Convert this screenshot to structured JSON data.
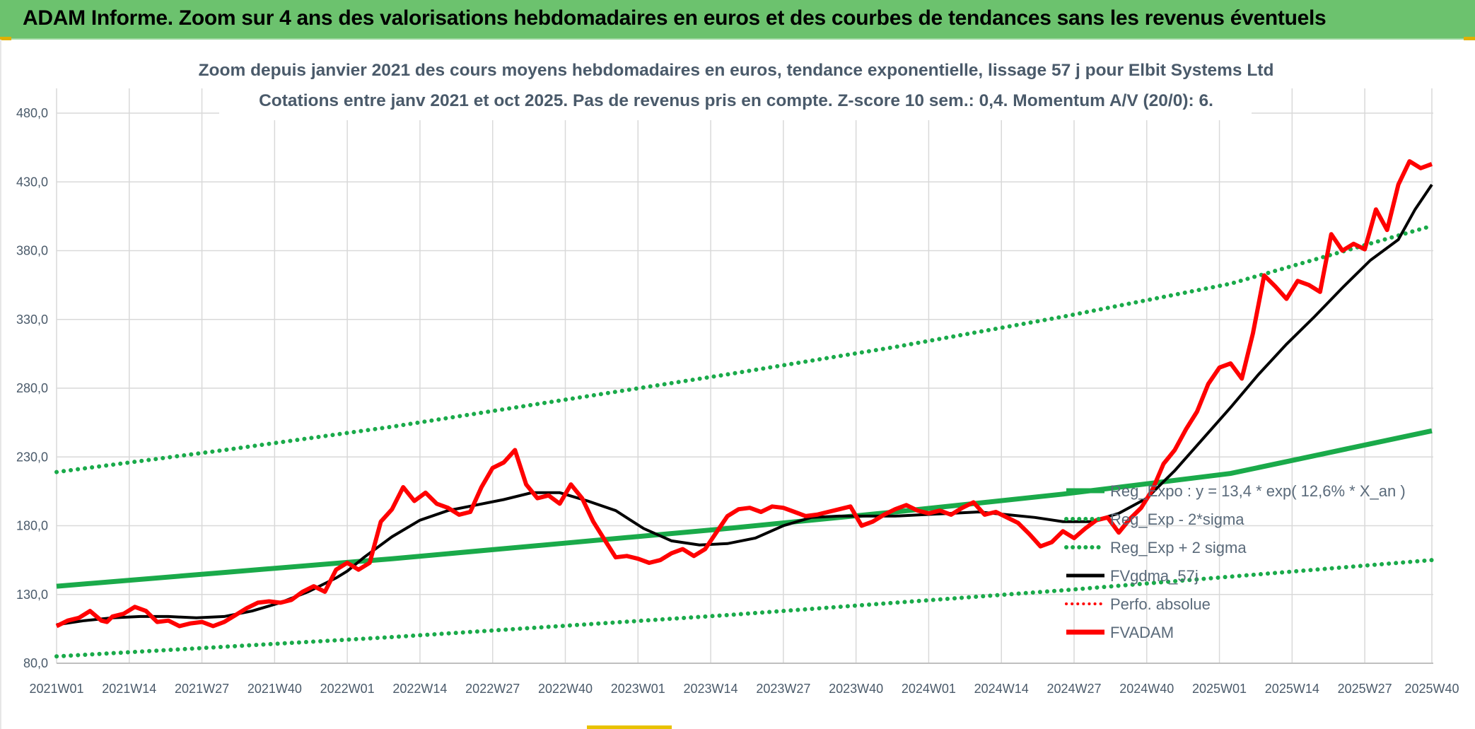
{
  "banner": {
    "title": "ADAM Informe. Zoom sur 4 ans des valorisations hebdomadaires en euros et des courbes de tendances sans les revenus éventuels"
  },
  "colors": {
    "banner_bg": "#6cc26e",
    "reg_expo": "#1aaa4a",
    "fvgdma": "#000000",
    "fvadam": "#ff0000",
    "perfo": "#ff0000",
    "grid": "#d9d9d9"
  },
  "chart_data": {
    "type": "line",
    "title": "Zoom depuis janvier 2021 des cours moyens hebdomadaires en euros, tendance exponentielle, lissage 57 j pour Elbit Systems Ltd",
    "subtitle": "Cotations entre janv 2021 et oct 2025. Pas de revenus pris en compte. Z-score 10 sem.: 0,4. Momentum A/V (20/0): 6.",
    "xlabel": "",
    "ylabel": "",
    "ylim": [
      80,
      480
    ],
    "grid": true,
    "legend_position": "right",
    "x_range_weeks": [
      0,
      246
    ],
    "y_ticks": [
      "80,0",
      "130,0",
      "180,0",
      "230,0",
      "280,0",
      "330,0",
      "380,0",
      "430,0",
      "480,0"
    ],
    "y_tick_values": [
      80,
      130,
      180,
      230,
      280,
      330,
      380,
      430,
      480
    ],
    "categories": [
      "2021W01",
      "2021W14",
      "2021W27",
      "2021W40",
      "2022W01",
      "2022W14",
      "2022W27",
      "2022W40",
      "2023W01",
      "2023W14",
      "2023W27",
      "2023W40",
      "2024W01",
      "2024W14",
      "2024W27",
      "2024W40",
      "2025W01",
      "2025W14",
      "2025W27",
      "2025W40"
    ],
    "category_weeks": [
      0,
      13,
      26,
      39,
      52,
      65,
      78,
      91,
      104,
      117,
      130,
      143,
      156,
      169,
      182,
      195,
      208,
      221,
      234,
      246
    ],
    "series": [
      {
        "name": "Reg_Expo : y = 13,4 * exp( 12,6% *  X_an )",
        "style": "solid-green",
        "x": [
          0,
          30,
          60,
          90,
          120,
          150,
          180,
          210,
          246
        ],
        "values": [
          136,
          146,
          156,
          167,
          178,
          190,
          203,
          218,
          249
        ]
      },
      {
        "name": "Reg_Exp - 2*sigma",
        "style": "dotted-green",
        "x": [
          0,
          30,
          60,
          90,
          120,
          150,
          180,
          210,
          246
        ],
        "values": [
          85,
          92,
          99,
          107,
          115,
          124,
          133,
          143,
          155
        ]
      },
      {
        "name": "Reg_Exp + 2 sigma",
        "style": "dotted-green",
        "x": [
          0,
          30,
          60,
          90,
          120,
          150,
          180,
          210,
          246
        ],
        "values": [
          219,
          235,
          252,
          271,
          290,
          310,
          332,
          356,
          398
        ]
      },
      {
        "name": "FVgdma_57j",
        "style": "solid-black",
        "x": [
          0,
          5,
          10,
          15,
          20,
          25,
          30,
          35,
          40,
          45,
          50,
          52,
          55,
          60,
          65,
          70,
          75,
          80,
          85,
          90,
          95,
          100,
          105,
          110,
          115,
          120,
          125,
          130,
          135,
          140,
          145,
          150,
          155,
          160,
          165,
          170,
          175,
          180,
          185,
          190,
          195,
          200,
          205,
          210,
          215,
          220,
          225,
          230,
          235,
          240,
          243,
          246
        ],
        "values": [
          108,
          111,
          113,
          114,
          114,
          113,
          114,
          118,
          124,
          132,
          142,
          147,
          157,
          172,
          184,
          191,
          195,
          199,
          204,
          204,
          198,
          191,
          178,
          169,
          166,
          167,
          171,
          180,
          186,
          187,
          187,
          187,
          188,
          189,
          190,
          188,
          186,
          183,
          183,
          189,
          200,
          220,
          243,
          266,
          290,
          312,
          332,
          353,
          373,
          388,
          410,
          428
        ]
      },
      {
        "name": "Perfo. absolue",
        "style": "dotted-red",
        "x": [],
        "values": []
      },
      {
        "name": "FVADAM",
        "style": "solid-red",
        "x": [
          0,
          2,
          4,
          6,
          8,
          9,
          10,
          12,
          14,
          16,
          18,
          20,
          22,
          24,
          26,
          28,
          30,
          32,
          34,
          36,
          38,
          40,
          42,
          44,
          46,
          48,
          50,
          52,
          54,
          56,
          58,
          60,
          62,
          64,
          66,
          68,
          70,
          72,
          74,
          76,
          78,
          80,
          82,
          84,
          86,
          88,
          90,
          92,
          94,
          96,
          98,
          100,
          102,
          104,
          106,
          108,
          110,
          112,
          114,
          116,
          118,
          120,
          122,
          124,
          126,
          128,
          130,
          132,
          134,
          136,
          138,
          140,
          142,
          144,
          146,
          148,
          150,
          152,
          154,
          156,
          158,
          160,
          162,
          164,
          166,
          168,
          170,
          172,
          174,
          176,
          178,
          180,
          182,
          184,
          186,
          188,
          190,
          192,
          194,
          196,
          198,
          200,
          202,
          204,
          206,
          208,
          210,
          212,
          214,
          216,
          218,
          220,
          222,
          224,
          226,
          228,
          230,
          232,
          234,
          236,
          238,
          240,
          242,
          244,
          246
        ],
        "values": [
          107,
          111,
          113,
          118,
          111,
          110,
          114,
          116,
          121,
          118,
          110,
          111,
          107,
          109,
          110,
          107,
          110,
          115,
          120,
          124,
          125,
          124,
          126,
          132,
          136,
          132,
          148,
          153,
          148,
          153,
          183,
          192,
          208,
          198,
          204,
          196,
          193,
          188,
          190,
          208,
          222,
          226,
          235,
          210,
          200,
          202,
          196,
          210,
          200,
          183,
          170,
          157,
          158,
          156,
          153,
          155,
          160,
          163,
          158,
          163,
          175,
          187,
          192,
          193,
          190,
          194,
          193,
          190,
          187,
          188,
          190,
          192,
          194,
          180,
          183,
          188,
          192,
          195,
          191,
          189,
          191,
          188,
          193,
          197,
          188,
          190,
          186,
          182,
          174,
          165,
          168,
          176,
          171,
          178,
          184,
          186,
          175,
          185,
          193,
          206,
          225,
          235,
          250,
          263,
          283,
          295,
          298,
          287,
          320,
          362,
          354,
          345,
          358,
          355,
          350,
          392,
          380,
          385,
          381,
          410,
          395,
          428,
          445,
          440,
          443
        ]
      }
    ]
  }
}
